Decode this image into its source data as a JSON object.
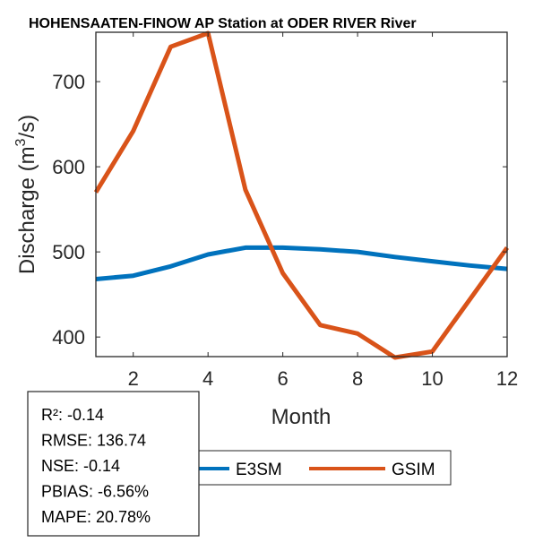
{
  "chart_data": {
    "type": "line",
    "title": "HOHENSAATEN-FINOW AP  Station at  ODER RIVER  River",
    "xlabel": "Month",
    "ylabel": "Discharge (m³/s)",
    "ylabel_parts": {
      "pre": "Discharge (m",
      "sup": "3",
      "post": "/s)"
    },
    "xlim": [
      1,
      12
    ],
    "ylim": [
      377,
      758
    ],
    "xticks": [
      2,
      4,
      6,
      8,
      10,
      12
    ],
    "yticks": [
      400,
      500,
      600,
      700
    ],
    "grid": false,
    "x": [
      1,
      2,
      3,
      4,
      5,
      6,
      7,
      8,
      9,
      10,
      11,
      12
    ],
    "series": [
      {
        "name": "E3SM",
        "color": "#0072BD",
        "values": [
          468,
          472,
          483,
          497,
          505,
          505,
          503,
          500,
          494,
          489,
          484,
          480
        ]
      },
      {
        "name": "GSIM",
        "color": "#D95319",
        "values": [
          570,
          642,
          741,
          757,
          573,
          475,
          414,
          404,
          376,
          383,
          444,
          505
        ]
      }
    ],
    "legend": {
      "placement": "bottom",
      "orientation": "horizontal",
      "entries": [
        "E3SM",
        "GSIM"
      ]
    },
    "stats": [
      {
        "label": "R²",
        "value": "-0.14"
      },
      {
        "label": "RMSE",
        "value": "136.74"
      },
      {
        "label": "NSE",
        "value": "-0.14"
      },
      {
        "label": "PBIAS",
        "value": "-6.56%"
      },
      {
        "label": "MAPE",
        "value": "20.78%"
      }
    ]
  }
}
